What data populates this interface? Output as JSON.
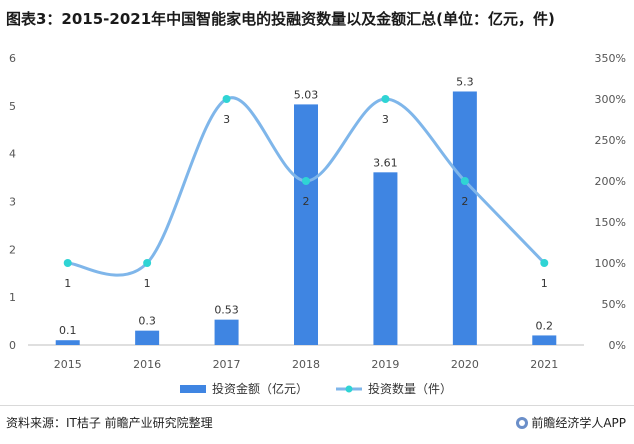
{
  "title": "图表3：2015-2021年中国智能家电的投融资数量以及金额汇总(单位：亿元，件)",
  "source": "资料来源：IT桔子 前瞻产业研究院整理",
  "brand": "前瞻经济学人APP",
  "chart_data": {
    "type": "bar",
    "categories": [
      "2015",
      "2016",
      "2017",
      "2018",
      "2019",
      "2020",
      "2021"
    ],
    "series": [
      {
        "name": "投资金额（亿元）",
        "type": "bar",
        "axis": "left",
        "values": [
          0.1,
          0.3,
          0.53,
          5.03,
          3.61,
          5.3,
          0.2
        ],
        "labels": [
          "0.1",
          "0.3",
          "0.53",
          "5.03",
          "3.61",
          "5.3",
          "0.2"
        ],
        "color": "#3f85e2"
      },
      {
        "name": "投资数量（件）",
        "type": "line",
        "axis": "right",
        "values": [
          1,
          1,
          3,
          2,
          3,
          2,
          1
        ],
        "labels": [
          "1",
          "1",
          "3",
          "2",
          "3",
          "2",
          "1"
        ],
        "color": "#7fb6ea",
        "marker_color": "#2fd4d4"
      }
    ],
    "y_left": {
      "ylim": [
        0,
        6
      ],
      "ticks": [
        "0",
        "1",
        "2",
        "3",
        "4",
        "5",
        "6"
      ]
    },
    "y_right": {
      "ylim": [
        0,
        350
      ],
      "ticks": [
        "0%",
        "50%",
        "100%",
        "150%",
        "200%",
        "250%",
        "300%",
        "350%"
      ]
    },
    "right_axis_unit_scale": 100,
    "grid": false,
    "legend": "bottom-center"
  }
}
